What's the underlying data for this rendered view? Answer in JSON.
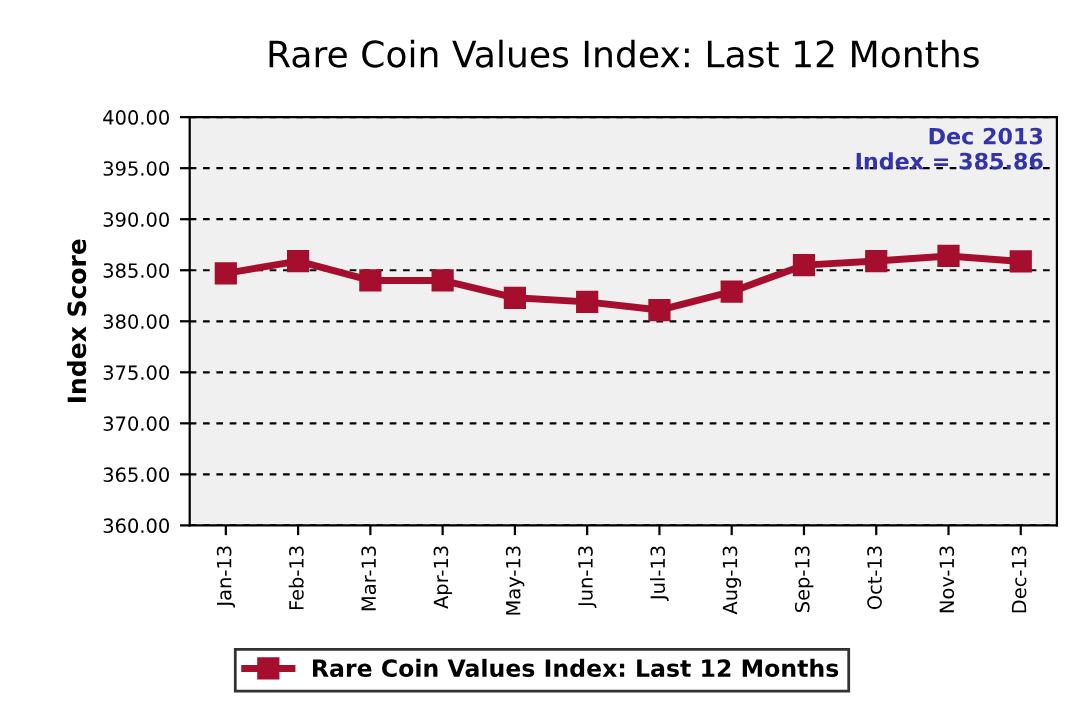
{
  "chart_data": {
    "type": "line",
    "title": "Rare Coin Values Index: Last 12 Months",
    "ylabel": "Index Score",
    "categories": [
      "Jan-13",
      "Feb-13",
      "Mar-13",
      "Apr-13",
      "May-13",
      "Jun-13",
      "Jul-13",
      "Aug-13",
      "Sep-13",
      "Oct-13",
      "Nov-13",
      "Dec-13"
    ],
    "series": [
      {
        "name": "Rare Coin Values Index: Last 12 Months",
        "color": "#a50f2d",
        "values": [
          384.7,
          385.9,
          384.0,
          384.0,
          382.3,
          381.9,
          381.1,
          382.9,
          385.5,
          385.9,
          386.4,
          385.86
        ]
      }
    ],
    "ylim": [
      360,
      400
    ],
    "yticks": [
      {
        "value": 360,
        "label": "360.00"
      },
      {
        "value": 365,
        "label": "365.00"
      },
      {
        "value": 370,
        "label": "370.00"
      },
      {
        "value": 375,
        "label": "375.00"
      },
      {
        "value": 380,
        "label": "380.00"
      },
      {
        "value": 385,
        "label": "385.00"
      },
      {
        "value": 390,
        "label": "390.00"
      },
      {
        "value": 395,
        "label": "395.00"
      },
      {
        "value": 400,
        "label": "400.00"
      }
    ],
    "annotations": [
      "Dec 2013\nIndex = 385.86"
    ],
    "grid": "y",
    "legend": "bottom",
    "marker": "square",
    "line_style": "solid"
  }
}
